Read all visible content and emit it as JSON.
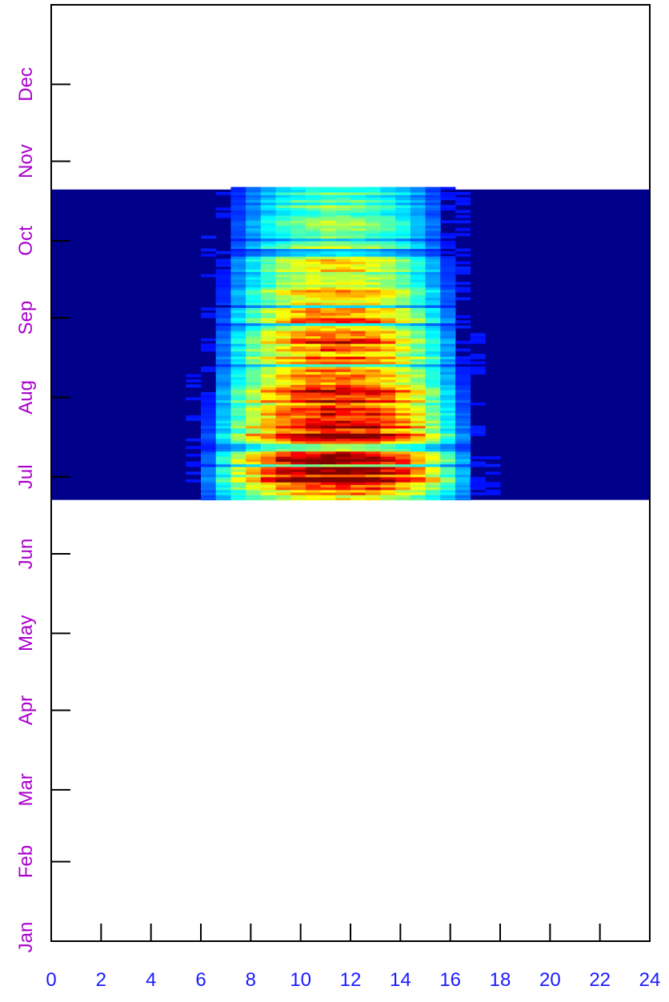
{
  "chart_data": {
    "type": "heatmap",
    "title": "",
    "xlabel": "",
    "ylabel": "",
    "xlim": [
      0,
      24
    ],
    "x_ticks": [
      0,
      2,
      4,
      6,
      8,
      10,
      12,
      14,
      16,
      18,
      20,
      22,
      24
    ],
    "x_tick_labels": [
      "0",
      "2",
      "4",
      "6",
      "8",
      "10",
      "12",
      "14",
      "16",
      "18",
      "20",
      "22",
      "24"
    ],
    "y_ticks": [
      "Jan",
      "Feb",
      "Mar",
      "Apr",
      "May",
      "Jun",
      "Jul",
      "Aug",
      "Sep",
      "Oct",
      "Nov",
      "Dec"
    ],
    "y_tick_day_of_year": [
      1,
      32,
      60,
      91,
      121,
      152,
      182,
      213,
      244,
      274,
      305,
      335
    ],
    "ylim_day_of_year": [
      1,
      366
    ],
    "data_range_dates": [
      "Jun 22",
      "Oct 20"
    ],
    "data_range_day_of_year": [
      173,
      294
    ],
    "colormap": "jet",
    "background_color": "#00008b",
    "hour_bins": 40,
    "description_of_values": "diurnal intensity by hour of day (x) and date (y), peaking near hour 10-12 in early July"
  },
  "colors": {
    "x_tick_label": "#1a1aff",
    "y_tick_label": "#aa00cc",
    "axis": "#000000"
  }
}
